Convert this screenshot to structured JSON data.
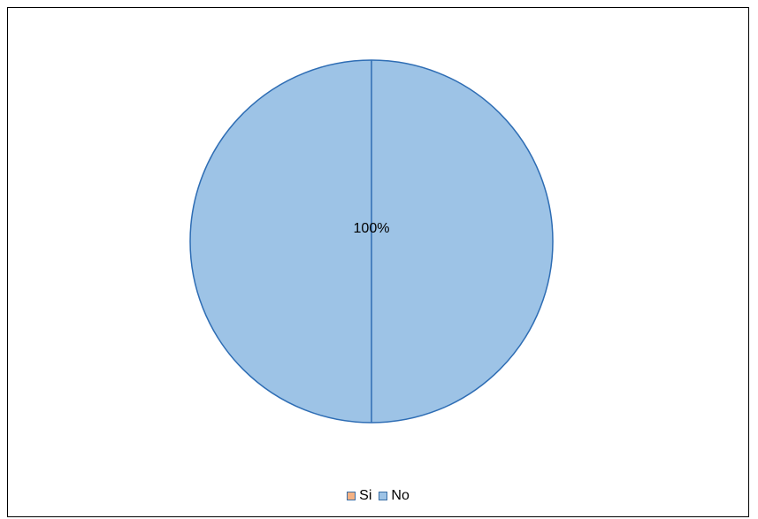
{
  "chart_data": {
    "type": "pie",
    "categories": [
      "Si",
      "No"
    ],
    "values": [
      0,
      100
    ],
    "data_labels": [
      "",
      "100%"
    ],
    "colors": {
      "Si": "#f4b183",
      "No": "#9dc3e6",
      "stroke": "#2e6db4",
      "legend_swatch_border": "#3a6ea5"
    },
    "legend_position": "bottom",
    "title": ""
  }
}
